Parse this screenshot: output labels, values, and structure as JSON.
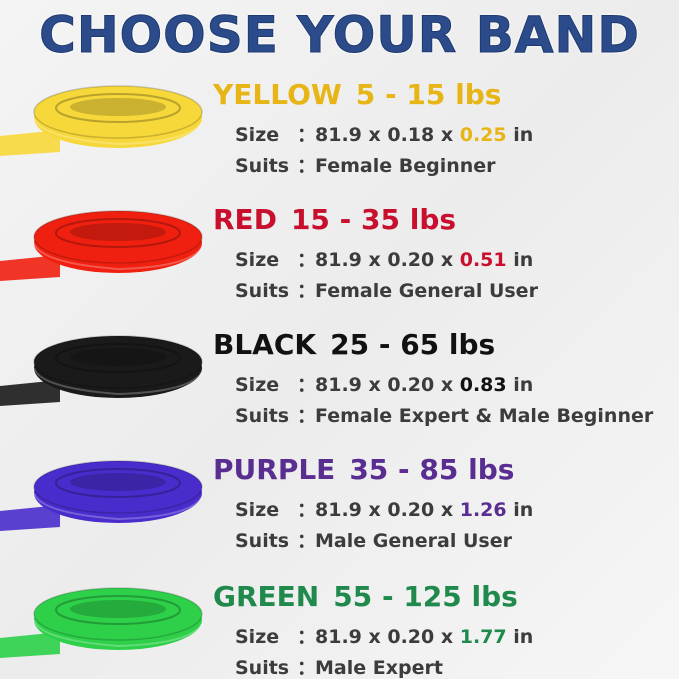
{
  "title": "CHOOSE YOUR BAND",
  "size_label": "Size",
  "suits_label": "Suits",
  "colon": "：",
  "bands": [
    {
      "name": "YELLOW",
      "resistance": "5 - 15 lbs",
      "size_prefix": "81.9 x 0.18 x ",
      "width": "0.25",
      "unit": " in",
      "suits": "Female Beginner",
      "color": "#e8b516",
      "band_color": "#f7d83a"
    },
    {
      "name": "RED",
      "resistance": "15 - 35 lbs",
      "size_prefix": "81.9 x 0.20 x ",
      "width": "0.51",
      "unit": " in",
      "suits": "Female General User",
      "color": "#c8102e",
      "band_color": "#f02010"
    },
    {
      "name": "BLACK",
      "resistance": "25 - 65 lbs",
      "size_prefix": "81.9 x 0.20 x ",
      "width": "0.83",
      "unit": " in",
      "suits": "Female Expert & Male Beginner",
      "color": "#111111",
      "band_color": "#1a1a1a"
    },
    {
      "name": "PURPLE",
      "resistance": "35 - 85 lbs",
      "size_prefix": "81.9 x 0.20 x ",
      "width": "1.26",
      "unit": " in",
      "suits": "Male General User",
      "color": "#5a2d91",
      "band_color": "#4a2ccc"
    },
    {
      "name": "GREEN",
      "resistance": "55 - 125 lbs",
      "size_prefix": "81.9 x 0.20 x ",
      "width": "1.77",
      "unit": " in",
      "suits": "Male Expert",
      "color": "#1f8a4c",
      "band_color": "#2ed04a"
    }
  ]
}
